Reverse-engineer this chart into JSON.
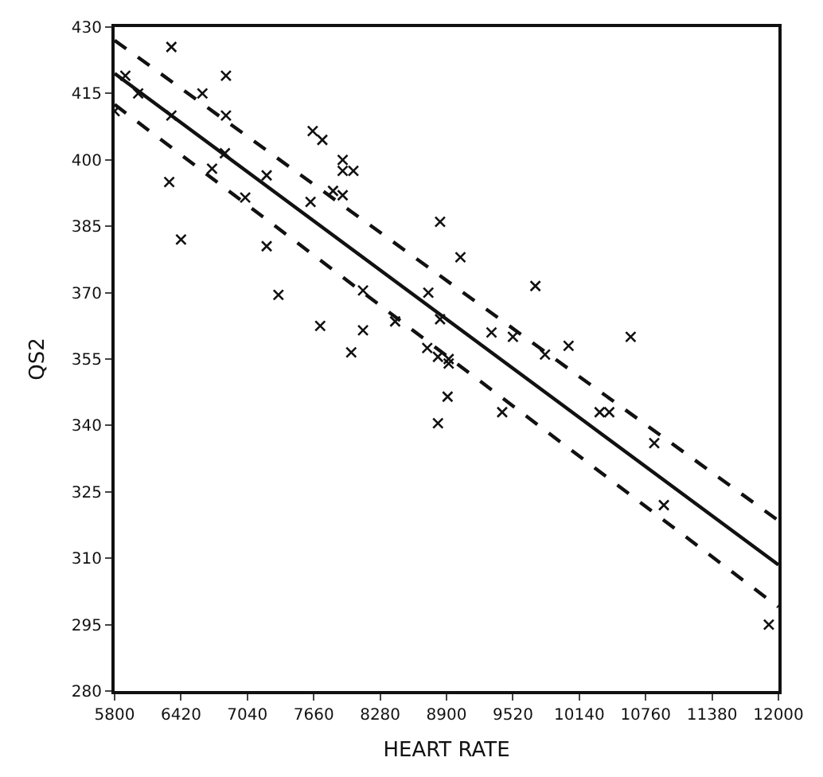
{
  "chart_data": {
    "type": "scatter",
    "xlabel": "HEART RATE",
    "ylabel": "QS2",
    "xlim": [
      5800,
      12000
    ],
    "ylim": [
      280,
      430
    ],
    "xticks": [
      5800,
      6420,
      7040,
      7660,
      8280,
      8900,
      9520,
      10140,
      10760,
      11380,
      12000
    ],
    "yticks": [
      280,
      295,
      310,
      325,
      340,
      355,
      370,
      385,
      400,
      415,
      430
    ],
    "series": [
      {
        "marker": "cross",
        "color": "#111111",
        "x": [
          6330,
          6840,
          6620,
          6840,
          7650,
          7740,
          6020,
          5900,
          5800,
          6330,
          7930,
          7930,
          8030,
          7840,
          7930,
          7630,
          7220,
          7020,
          6710,
          6830,
          6310,
          6420,
          7220,
          7330,
          8120,
          7720,
          8120,
          8420,
          8010,
          8840,
          9030,
          9730,
          8730,
          8840,
          9320,
          9520,
          10620,
          10040,
          9820,
          8720,
          8820,
          8920,
          8920,
          8910,
          8820,
          9420,
          10330,
          10420,
          10840,
          10930,
          11910
        ],
        "values": [
          425.5,
          419,
          415,
          410,
          406.5,
          404.5,
          415,
          419,
          411,
          410,
          400,
          397.5,
          397.5,
          393,
          392,
          390.5,
          396.5,
          391.5,
          398,
          401.5,
          395,
          382,
          380.5,
          369.5,
          370.5,
          362.5,
          361.5,
          363.5,
          356.5,
          386,
          378,
          371.5,
          370,
          364,
          361,
          360,
          360,
          358,
          356,
          357.5,
          355.5,
          355,
          354,
          346.5,
          340.5,
          343,
          343,
          343,
          336,
          322,
          295
        ]
      },
      {
        "type": "line",
        "line_style": "solid",
        "color": "#111111",
        "x": [
          5800,
          12000
        ],
        "values": [
          419.5,
          308.5
        ]
      },
      {
        "type": "line",
        "line_style": "dashed",
        "color": "#111111",
        "x": [
          5800,
          12000
        ],
        "values": [
          427,
          318.5
        ]
      },
      {
        "type": "line",
        "line_style": "dashed",
        "color": "#111111",
        "x": [
          5800,
          12000
        ],
        "values": [
          412.5,
          299
        ]
      }
    ]
  }
}
